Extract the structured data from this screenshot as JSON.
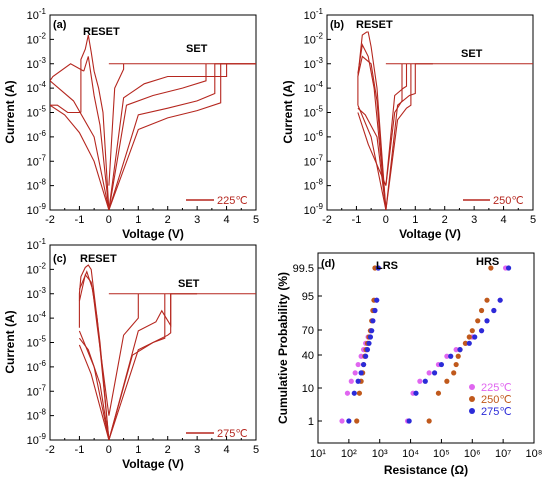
{
  "colors": {
    "curve": "#b5271f",
    "c225": "#e066f0",
    "c250": "#c0591c",
    "c275": "#2b2bd8",
    "axis": "#000000"
  },
  "chart_data": [
    {
      "panel": "(a)",
      "type": "line",
      "xlabel": "Voltage (V)",
      "ylabel": "Current (A)",
      "xlim": [
        -2,
        5
      ],
      "ylim_log10": [
        -9,
        -1
      ],
      "x_ticks": [
        "-2",
        "-1",
        "0",
        "1",
        "2",
        "3",
        "4",
        "5"
      ],
      "y_ticks": [
        "10-9",
        "10-8",
        "10-7",
        "10-6",
        "10-5",
        "10-4",
        "10-3",
        "10-2",
        "10-1"
      ],
      "annotations": [
        "RESET",
        "SET"
      ],
      "legend": "225℃",
      "compliance_current": 0.001,
      "series": [
        {
          "x": [
            0,
            1.0,
            2.0,
            3.0,
            3.6,
            3.6,
            5.0
          ],
          "y": [
            1e-09,
            8e-06,
            1.5e-05,
            3e-05,
            6e-05,
            0.001,
            0.001
          ]
        },
        {
          "x": [
            0,
            1.0,
            2.0,
            3.0,
            3.8,
            3.8,
            5.0
          ],
          "y": [
            1e-09,
            2e-06,
            6e-06,
            1.2e-05,
            2.5e-05,
            0.001,
            0.001
          ]
        },
        {
          "x": [
            0,
            0.6,
            1.5,
            2.5,
            3.3,
            3.3
          ],
          "y": [
            1e-09,
            2e-05,
            5e-05,
            0.0001,
            0.0002,
            0.001
          ]
        },
        {
          "x": [
            0,
            0.5,
            1.2,
            2.0,
            4.0,
            4.0
          ],
          "y": [
            1e-09,
            4e-05,
            0.00015,
            0.0003,
            0.0003,
            0.001
          ]
        },
        {
          "x": [
            0,
            0.2,
            0.5,
            0.5
          ],
          "y": [
            1e-08,
            0.0001,
            0.0006,
            0.001
          ]
        },
        {
          "x": [
            0,
            -0.2,
            -0.35,
            -0.5,
            -0.6,
            -0.7,
            -0.8,
            -0.95,
            -0.95
          ],
          "y": [
            1e-09,
            1e-05,
            0.0001,
            0.0005,
            0.003,
            0.015,
            0.004,
            0.0015,
            1e-05
          ]
        },
        {
          "x": [
            -0.95,
            -1.4,
            -1.75,
            -2.0
          ],
          "y": [
            1e-05,
            1e-05,
            2e-05,
            2e-05
          ]
        },
        {
          "x": [
            -2.0,
            -1.5,
            -1.0,
            -0.5,
            0
          ],
          "y": [
            2e-05,
            8e-06,
            1.5e-06,
            1e-07,
            1e-09
          ]
        },
        {
          "x": [
            0,
            -0.3,
            -0.5,
            -0.7,
            -0.85
          ],
          "y": [
            1e-09,
            3e-06,
            5e-05,
            0.002,
            0.0005
          ]
        },
        {
          "x": [
            -0.85,
            -1.3,
            -1.9,
            -2.0
          ],
          "y": [
            0.0005,
            0.001,
            0.0003,
            0.0002
          ]
        },
        {
          "x": [
            -2.0,
            -1.2,
            -0.5,
            0
          ],
          "y": [
            0.0002,
            3e-05,
            1e-06,
            1e-09
          ]
        }
      ]
    },
    {
      "panel": "(b)",
      "type": "line",
      "xlabel": "Voltage (V)",
      "ylabel": "Current (A)",
      "xlim": [
        -2,
        5
      ],
      "ylim_log10": [
        -9,
        -1
      ],
      "x_ticks": [
        "-2",
        "-1",
        "0",
        "1",
        "2",
        "3",
        "4",
        "5"
      ],
      "y_ticks": [
        "10-9",
        "10-8",
        "10-7",
        "10-6",
        "10-5",
        "10-4",
        "10-3",
        "10-2",
        "10-1"
      ],
      "annotations": [
        "RESET",
        "SET"
      ],
      "legend": "250℃",
      "compliance_current": 0.001,
      "series": [
        {
          "x": [
            0,
            0.4,
            0.8,
            1.0,
            1.0,
            1.6
          ],
          "y": [
            1e-09,
            2e-05,
            5e-05,
            6e-05,
            0.001,
            0.001
          ]
        },
        {
          "x": [
            0,
            0.4,
            0.7,
            0.85,
            0.85
          ],
          "y": [
            1e-09,
            5e-06,
            1.5e-05,
            2e-05,
            0.001
          ]
        },
        {
          "x": [
            0,
            0.3,
            0.6,
            0.7,
            0.7
          ],
          "y": [
            1e-08,
            5e-05,
            0.0001,
            0.00012,
            0.001
          ]
        },
        {
          "x": [
            0,
            0.3,
            0.55,
            0.55
          ],
          "y": [
            1e-08,
            1e-05,
            3e-05,
            0.001
          ]
        },
        {
          "x": [
            0,
            -0.3,
            -0.5,
            -0.6,
            -0.6,
            -0.65,
            -0.8,
            -0.95,
            -0.95
          ],
          "y": [
            1e-09,
            0.0001,
            0.005,
            0.02,
            0.02,
            0.02,
            0.015,
            0.0003,
            2e-05
          ]
        },
        {
          "x": [
            -0.95,
            -0.5,
            0
          ],
          "y": [
            2e-05,
            1e-06,
            1e-09
          ]
        },
        {
          "x": [
            0,
            -0.3,
            -0.5,
            -0.8,
            -0.95
          ],
          "y": [
            1e-09,
            3e-05,
            0.001,
            0.002,
            0.0003
          ]
        },
        {
          "x": [
            -0.95,
            -0.6,
            0
          ],
          "y": [
            1e-05,
            5e-07,
            1e-08
          ]
        },
        {
          "x": [
            0,
            -0.4,
            -0.6,
            -0.8,
            -0.95
          ],
          "y": [
            1e-09,
            0.0001,
            0.002,
            0.006,
            0.0004
          ]
        },
        {
          "x": [
            -0.95,
            -0.7,
            -0.3,
            0
          ],
          "y": [
            1.5e-05,
            8e-06,
            1e-06,
            1e-09
          ]
        }
      ]
    },
    {
      "panel": "(c)",
      "type": "line",
      "xlabel": "Voltage (V)",
      "ylabel": "Current (A)",
      "xlim": [
        -2,
        5
      ],
      "ylim_log10": [
        -9,
        -1
      ],
      "x_ticks": [
        "-2",
        "-1",
        "0",
        "1",
        "2",
        "3",
        "4",
        "5"
      ],
      "y_ticks": [
        "10-9",
        "10-8",
        "10-7",
        "10-6",
        "10-5",
        "10-4",
        "10-3",
        "10-2",
        "10-1"
      ],
      "annotations": [
        "RESET",
        "SET"
      ],
      "legend": "275℃",
      "compliance_current": 0.001,
      "series": [
        {
          "x": [
            0,
            1.0,
            2.0,
            2.1,
            2.1,
            3.0
          ],
          "y": [
            1e-09,
            5e-06,
            2e-05,
            2.5e-05,
            0.001,
            0.001
          ]
        },
        {
          "x": [
            0,
            0.8,
            1.5,
            1.9,
            1.9
          ],
          "y": [
            1e-09,
            3e-06,
            1e-05,
            1.5e-05,
            0.001
          ]
        },
        {
          "x": [
            0,
            1.0,
            1.6,
            1.8,
            2.1,
            2.1
          ],
          "y": [
            1e-09,
            3e-05,
            7e-05,
            0.0002,
            5e-05,
            0.001
          ]
        },
        {
          "x": [
            0,
            0.5,
            1.0,
            1.0
          ],
          "y": [
            1e-08,
            2e-05,
            0.0001,
            0.001
          ]
        },
        {
          "x": [
            0,
            -0.3,
            -0.5,
            -0.6,
            -0.7,
            -0.8,
            -0.95,
            -1.0,
            -1.0
          ],
          "y": [
            1e-09,
            1e-05,
            0.001,
            0.01,
            0.015,
            0.012,
            0.005,
            0.001,
            4e-05
          ]
        },
        {
          "x": [
            -1.0,
            -0.5,
            0
          ],
          "y": [
            3e-05,
            1e-06,
            1e-09
          ]
        },
        {
          "x": [
            0,
            -0.4,
            -0.6,
            -0.8,
            -1.0
          ],
          "y": [
            1e-09,
            0.0001,
            0.003,
            0.006,
            0.0005
          ]
        },
        {
          "x": [
            -1.0,
            -0.6,
            0
          ],
          "y": [
            8e-06,
            5e-07,
            1e-09
          ]
        },
        {
          "x": [
            0,
            -0.4,
            -0.55,
            -0.75,
            -1.0
          ],
          "y": [
            1e-08,
            5e-05,
            0.0015,
            0.008,
            0.0015
          ]
        },
        {
          "x": [
            -1.0,
            -0.7,
            -0.3,
            0
          ],
          "y": [
            1.5e-05,
            5e-06,
            2e-07,
            1e-09
          ]
        }
      ]
    },
    {
      "panel": "(d)",
      "type": "scatter",
      "xlabel": "Resistance (Ω)",
      "ylabel": "Cumulative Probability (%)",
      "xlim_log10": [
        1,
        8
      ],
      "x_ticks": [
        "10¹",
        "10²",
        "10³",
        "10⁴",
        "10⁵",
        "10⁶",
        "10⁷",
        "10⁸"
      ],
      "y_ticks": [
        "1",
        "10",
        "40",
        "70",
        "95",
        "99.5"
      ],
      "annotations": [
        "LRS",
        "HRS"
      ],
      "series": [
        {
          "name": "225℃",
          "lrs": [
            60,
            90,
            120,
            160,
            200,
            250,
            300,
            350,
            420,
            500,
            600,
            700,
            800,
            900
          ],
          "hrs": [
            8000,
            12000,
            20000,
            40000,
            80000,
            150000,
            300000,
            600000,
            1000000,
            2000000,
            3000000,
            5000000,
            8000000,
            12000000
          ]
        },
        {
          "name": "250℃",
          "lrs": [
            180,
            220,
            250,
            280,
            300,
            330,
            360,
            400,
            450,
            500,
            550,
            600,
            650,
            700
          ],
          "hrs": [
            40000,
            80000,
            150000,
            250000,
            300000,
            350000,
            400000,
            600000,
            800000,
            1000000,
            1500000,
            2000000,
            3000000,
            4000000
          ]
        },
        {
          "name": "275℃",
          "lrs": [
            100,
            150,
            200,
            250,
            300,
            350,
            400,
            450,
            500,
            550,
            600,
            700,
            800,
            900
          ],
          "hrs": [
            9000,
            15000,
            30000,
            60000,
            100000,
            200000,
            400000,
            800000,
            1200000,
            2000000,
            3000000,
            5000000,
            8000000,
            15000000
          ]
        }
      ]
    }
  ]
}
